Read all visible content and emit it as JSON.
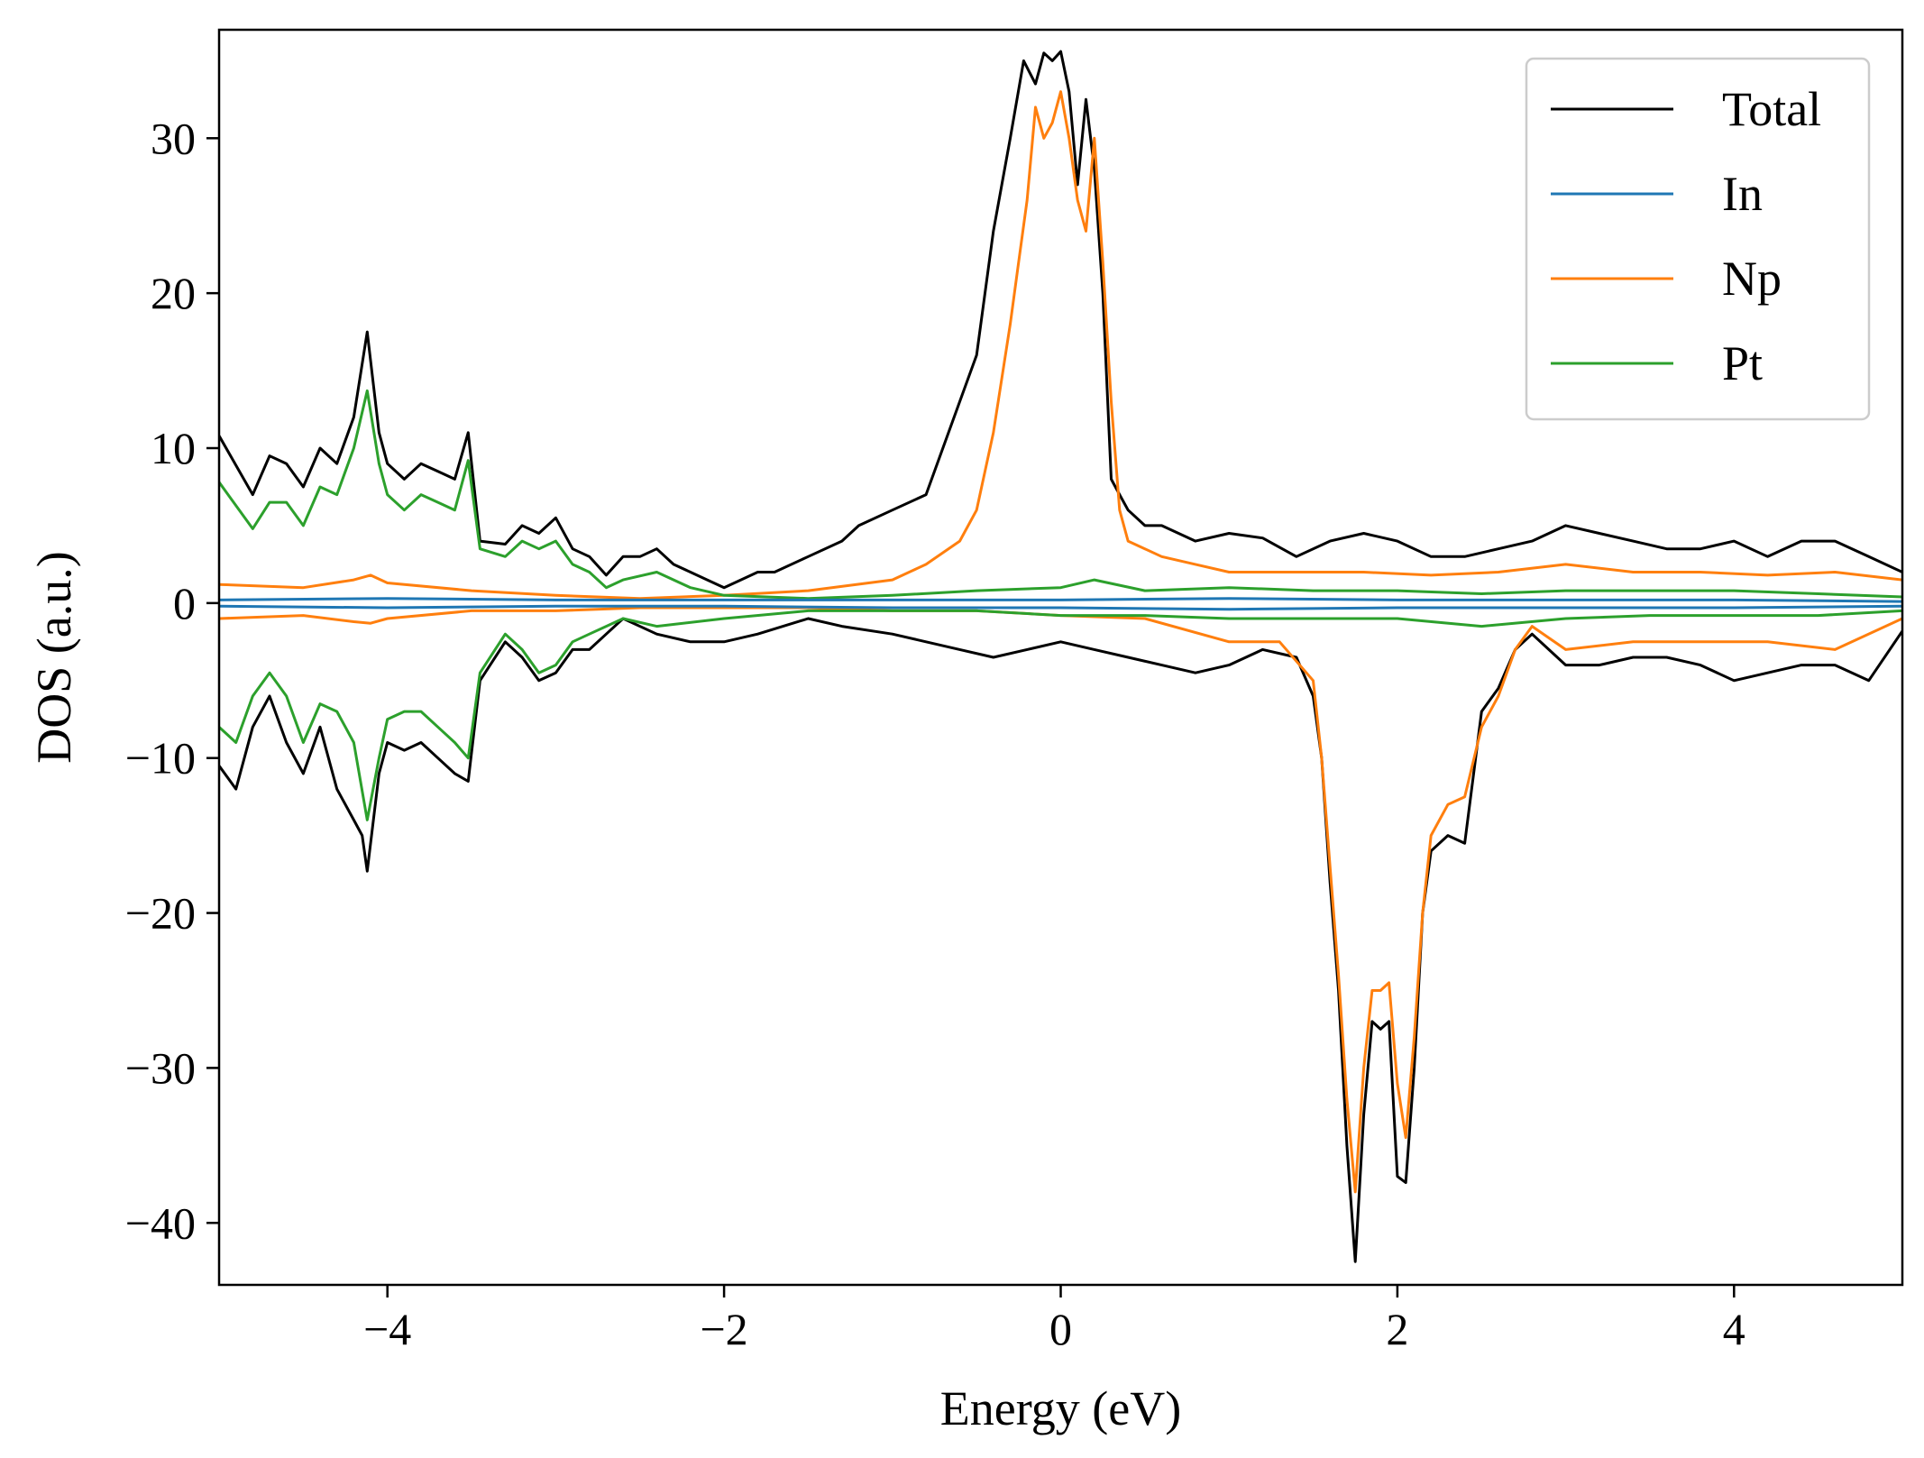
{
  "chart_data": {
    "type": "line",
    "title": "",
    "xlabel": "Energy (eV)",
    "ylabel": "DOS (a.u.)",
    "xlim": [
      -5,
      5
    ],
    "ylim": [
      -44,
      37
    ],
    "xticks": [
      -4,
      -2,
      0,
      2,
      4
    ],
    "yticks": [
      -40,
      -30,
      -20,
      -10,
      0,
      10,
      20,
      30
    ],
    "xtick_labels": [
      "−4",
      "−2",
      "0",
      "2",
      "4"
    ],
    "ytick_labels": [
      "−40",
      "−30",
      "−20",
      "−10",
      "0",
      "10",
      "20",
      "30"
    ],
    "grid": false,
    "legend": {
      "placement": "top-right",
      "entries": [
        "Total",
        "In",
        "Np",
        "Pt"
      ]
    },
    "colors": {
      "Total": "#000000",
      "In": "#1f77b4",
      "Np": "#ff7f0e",
      "Pt": "#2ca02c"
    },
    "series": [
      {
        "name": "Total",
        "spin": "up",
        "x": [
          -5,
          -4.8,
          -4.7,
          -4.6,
          -4.5,
          -4.4,
          -4.3,
          -4.2,
          -4.12,
          -4.05,
          -4,
          -3.9,
          -3.8,
          -3.7,
          -3.6,
          -3.52,
          -3.45,
          -3.3,
          -3.2,
          -3.1,
          -3,
          -2.9,
          -2.8,
          -2.7,
          -2.6,
          -2.5,
          -2.4,
          -2.3,
          -2.2,
          -2.1,
          -2,
          -1.9,
          -1.8,
          -1.7,
          -1.5,
          -1.3,
          -1.2,
          -1,
          -0.8,
          -0.7,
          -0.6,
          -0.5,
          -0.4,
          -0.3,
          -0.22,
          -0.15,
          -0.1,
          -0.05,
          0,
          0.05,
          0.1,
          0.15,
          0.2,
          0.25,
          0.3,
          0.35,
          0.4,
          0.5,
          0.6,
          0.8,
          1,
          1.2,
          1.4,
          1.6,
          1.8,
          2,
          2.2,
          2.4,
          2.6,
          2.8,
          3,
          3.2,
          3.4,
          3.6,
          3.8,
          4,
          4.2,
          4.4,
          4.6,
          4.8,
          5
        ],
        "y": [
          10.8,
          7,
          9.5,
          9,
          7.5,
          10,
          9,
          12,
          17.5,
          11,
          9,
          8,
          9,
          8.5,
          8,
          11,
          4,
          3.8,
          5,
          4.5,
          5.5,
          3.5,
          3,
          1.8,
          3,
          3,
          3.5,
          2.5,
          2,
          1.5,
          1,
          1.5,
          2,
          2,
          3,
          4,
          5,
          6,
          7,
          10,
          13,
          16,
          24,
          30,
          35,
          33.5,
          35.5,
          35,
          35.6,
          33,
          27,
          32.5,
          28,
          20,
          8,
          7,
          6,
          5,
          5,
          4,
          4.5,
          4.2,
          3,
          4,
          4.5,
          4,
          3,
          3,
          3.5,
          4,
          5,
          4.5,
          4,
          3.5,
          3.5,
          4,
          3,
          4,
          4,
          3,
          2
        ]
      },
      {
        "name": "Total",
        "spin": "down",
        "x": [
          -5,
          -4.9,
          -4.8,
          -4.7,
          -4.6,
          -4.5,
          -4.4,
          -4.3,
          -4.2,
          -4.15,
          -4.12,
          -4.05,
          -4,
          -3.9,
          -3.8,
          -3.7,
          -3.6,
          -3.52,
          -3.45,
          -3.3,
          -3.2,
          -3.1,
          -3,
          -2.9,
          -2.8,
          -2.7,
          -2.6,
          -2.4,
          -2.2,
          -2,
          -1.8,
          -1.5,
          -1.3,
          -1,
          -0.8,
          -0.6,
          -0.4,
          -0.2,
          0,
          0.2,
          0.4,
          0.6,
          0.8,
          1,
          1.2,
          1.4,
          1.5,
          1.55,
          1.6,
          1.65,
          1.7,
          1.75,
          1.8,
          1.85,
          1.9,
          1.95,
          2,
          2.05,
          2.1,
          2.15,
          2.2,
          2.3,
          2.4,
          2.5,
          2.6,
          2.7,
          2.8,
          2.9,
          3,
          3.2,
          3.4,
          3.6,
          3.8,
          4,
          4.2,
          4.4,
          4.6,
          4.8,
          5
        ],
        "y": [
          -10.5,
          -12,
          -8,
          -6,
          -9,
          -11,
          -8,
          -12,
          -14,
          -15,
          -17.3,
          -11,
          -9,
          -9.5,
          -9,
          -10,
          -11,
          -11.5,
          -5,
          -2.5,
          -3.5,
          -5,
          -4.5,
          -3,
          -3,
          -2,
          -1,
          -2,
          -2.5,
          -2.5,
          -2,
          -1,
          -1.5,
          -2,
          -2.5,
          -3,
          -3.5,
          -3,
          -2.5,
          -3,
          -3.5,
          -4,
          -4.5,
          -4,
          -3,
          -3.5,
          -6,
          -10,
          -18,
          -25,
          -35,
          -42.5,
          -33,
          -27,
          -27.5,
          -27,
          -37,
          -37.4,
          -30,
          -20,
          -16,
          -15,
          -15.5,
          -7,
          -5.5,
          -3,
          -2,
          -3,
          -4,
          -4,
          -3.5,
          -3.5,
          -4,
          -5,
          -4.5,
          -4,
          -4,
          -5,
          -1.8
        ]
      },
      {
        "name": "Np",
        "spin": "up",
        "x": [
          -5,
          -4.5,
          -4.2,
          -4.1,
          -4,
          -3.5,
          -3,
          -2.5,
          -2,
          -1.5,
          -1,
          -0.8,
          -0.6,
          -0.5,
          -0.4,
          -0.3,
          -0.25,
          -0.2,
          -0.15,
          -0.1,
          -0.05,
          0,
          0.05,
          0.1,
          0.15,
          0.2,
          0.25,
          0.3,
          0.35,
          0.4,
          0.5,
          0.6,
          0.8,
          1,
          1.4,
          1.8,
          2.2,
          2.6,
          3,
          3.4,
          3.8,
          4.2,
          4.6,
          5
        ],
        "y": [
          1.2,
          1,
          1.5,
          1.8,
          1.3,
          0.8,
          0.5,
          0.3,
          0.5,
          0.8,
          1.5,
          2.5,
          4,
          6,
          11,
          18,
          22,
          26,
          32,
          30,
          31,
          33,
          30,
          26,
          24,
          30,
          22,
          13,
          6,
          4,
          3.5,
          3,
          2.5,
          2,
          2,
          2,
          1.8,
          2,
          2.5,
          2,
          2,
          1.8,
          2,
          1.5
        ]
      },
      {
        "name": "Np",
        "spin": "down",
        "x": [
          -5,
          -4.5,
          -4.2,
          -4.1,
          -4,
          -3.5,
          -3,
          -2.5,
          -2,
          -1.5,
          -1,
          -0.5,
          0,
          0.5,
          1,
          1.3,
          1.5,
          1.55,
          1.6,
          1.65,
          1.7,
          1.75,
          1.8,
          1.85,
          1.9,
          1.95,
          2,
          2.05,
          2.1,
          2.15,
          2.2,
          2.3,
          2.4,
          2.5,
          2.6,
          2.7,
          2.8,
          3,
          3.4,
          3.8,
          4.2,
          4.6,
          5
        ],
        "y": [
          -1,
          -0.8,
          -1.2,
          -1.3,
          -1,
          -0.5,
          -0.5,
          -0.3,
          -0.3,
          -0.3,
          -0.5,
          -0.5,
          -0.8,
          -1,
          -2.5,
          -2.5,
          -5,
          -10,
          -17,
          -24,
          -32,
          -38,
          -30,
          -25,
          -25,
          -24.5,
          -31,
          -34.5,
          -28,
          -20,
          -15,
          -13,
          -12.5,
          -8,
          -6,
          -3,
          -1.5,
          -3,
          -2.5,
          -2.5,
          -2.5,
          -3,
          -1
        ]
      },
      {
        "name": "Pt",
        "spin": "up",
        "x": [
          -5,
          -4.8,
          -4.7,
          -4.6,
          -4.5,
          -4.4,
          -4.3,
          -4.2,
          -4.12,
          -4.05,
          -4,
          -3.9,
          -3.8,
          -3.7,
          -3.6,
          -3.52,
          -3.45,
          -3.3,
          -3.2,
          -3.1,
          -3,
          -2.9,
          -2.8,
          -2.7,
          -2.6,
          -2.4,
          -2.2,
          -2,
          -1.5,
          -1,
          -0.5,
          0,
          0.2,
          0.5,
          1,
          1.5,
          2,
          2.5,
          3,
          3.5,
          4,
          4.5,
          5
        ],
        "y": [
          7.8,
          4.8,
          6.5,
          6.5,
          5,
          7.5,
          7,
          10,
          13.7,
          9,
          7,
          6,
          7,
          6.5,
          6,
          9.2,
          3.5,
          3,
          4,
          3.5,
          4,
          2.5,
          2,
          1,
          1.5,
          2,
          1,
          0.5,
          0.3,
          0.5,
          0.8,
          1,
          1.5,
          0.8,
          1,
          0.8,
          0.8,
          0.6,
          0.8,
          0.8,
          0.8,
          0.6,
          0.4
        ]
      },
      {
        "name": "Pt",
        "spin": "down",
        "x": [
          -5,
          -4.9,
          -4.8,
          -4.7,
          -4.6,
          -4.5,
          -4.4,
          -4.3,
          -4.2,
          -4.12,
          -4.05,
          -4,
          -3.9,
          -3.8,
          -3.7,
          -3.6,
          -3.52,
          -3.45,
          -3.3,
          -3.2,
          -3.1,
          -3,
          -2.9,
          -2.8,
          -2.7,
          -2.6,
          -2.4,
          -2,
          -1.5,
          -1,
          -0.5,
          0,
          0.5,
          1,
          1.5,
          2,
          2.5,
          3,
          3.5,
          4,
          4.5,
          5
        ],
        "y": [
          -8,
          -9,
          -6,
          -4.5,
          -6,
          -9,
          -6.5,
          -7,
          -9,
          -14,
          -10,
          -7.5,
          -7,
          -7,
          -8,
          -9,
          -10,
          -4.5,
          -2,
          -3,
          -4.5,
          -4,
          -2.5,
          -2,
          -1.5,
          -1,
          -1.5,
          -1,
          -0.5,
          -0.5,
          -0.5,
          -0.8,
          -0.8,
          -1,
          -1,
          -1,
          -1.5,
          -1,
          -0.8,
          -0.8,
          -0.8,
          -0.5
        ]
      },
      {
        "name": "In",
        "spin": "up",
        "x": [
          -5,
          -4,
          -3,
          -2,
          -1,
          0,
          1,
          2,
          3,
          4,
          5
        ],
        "y": [
          0.2,
          0.3,
          0.2,
          0.2,
          0.2,
          0.2,
          0.3,
          0.2,
          0.2,
          0.2,
          0.1
        ]
      },
      {
        "name": "In",
        "spin": "down",
        "x": [
          -5,
          -4,
          -3,
          -2,
          -1,
          0,
          1,
          2,
          3,
          4,
          5
        ],
        "y": [
          -0.2,
          -0.3,
          -0.2,
          -0.2,
          -0.3,
          -0.3,
          -0.4,
          -0.3,
          -0.3,
          -0.3,
          -0.2
        ]
      }
    ]
  }
}
